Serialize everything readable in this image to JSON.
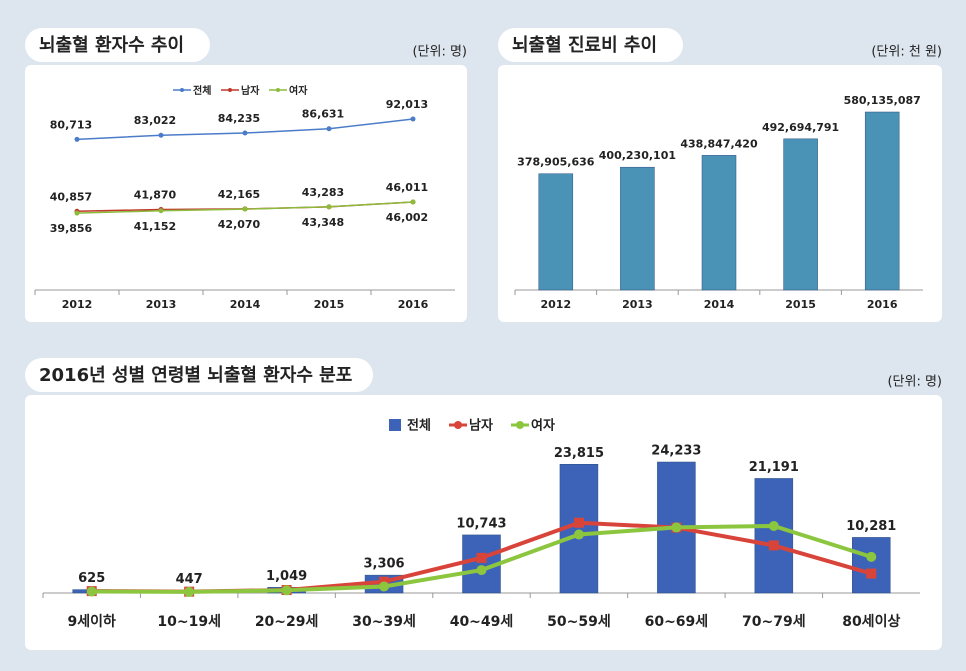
{
  "chart_data": [
    {
      "type": "line",
      "title": "뇌출혈 환자수 추이",
      "unit": "(단위: 명)",
      "categories": [
        "2012",
        "2013",
        "2014",
        "2015",
        "2016"
      ],
      "series": [
        {
          "name": "전체",
          "color": "#4a7cc9",
          "values": [
            80713,
            83022,
            84235,
            86631,
            92013
          ],
          "value_labels": [
            "80,713",
            "83,022",
            "84,235",
            "86,631",
            "92,013"
          ]
        },
        {
          "name": "남자",
          "color": "#c0392b",
          "values": [
            40857,
            41870,
            42165,
            43283,
            46011
          ],
          "value_labels": [
            "40,857",
            "41,870",
            "42,165",
            "43,283",
            "46,011"
          ]
        },
        {
          "name": "여자",
          "color": "#8dbb3c",
          "values": [
            39856,
            41152,
            42070,
            43348,
            46002
          ],
          "value_labels": [
            "39,856",
            "41,152",
            "42,070",
            "43,348",
            "46,002"
          ]
        }
      ]
    },
    {
      "type": "bar",
      "title": "뇌출혈 진료비 추이",
      "unit": "(단위: 천 원)",
      "categories": [
        "2012",
        "2013",
        "2014",
        "2015",
        "2016"
      ],
      "color": "#4b93b6",
      "values": [
        378905636,
        400230101,
        438847420,
        492694791,
        580135087
      ],
      "value_labels": [
        "378,905,636",
        "400,230,101",
        "438,847,420",
        "492,694,791",
        "580,135,087"
      ]
    },
    {
      "type": "combo",
      "title": "2016년 성별 연령별 뇌출혈 환자수 분포",
      "unit": "(단위: 명)",
      "categories": [
        "9세이하",
        "10~19세",
        "20~29세",
        "30~39세",
        "40~49세",
        "50~59세",
        "60~69세",
        "70~79세",
        "80세이상"
      ],
      "series": [
        {
          "name": "전체",
          "type": "bar",
          "color": "#3d63b8",
          "values": [
            625,
            447,
            1049,
            3306,
            10743,
            23815,
            24233,
            21191,
            10281
          ],
          "value_labels": [
            "625",
            "447",
            "1,049",
            "3,306",
            "10,743",
            "23,815",
            "24,233",
            "21,191",
            "10,281"
          ]
        },
        {
          "name": "남자",
          "type": "line",
          "color": "#d9443a",
          "values": [
            350,
            250,
            550,
            2100,
            6500,
            13000,
            12100,
            8800,
            3600
          ]
        },
        {
          "name": "여자",
          "type": "line",
          "color": "#8cc63f",
          "values": [
            275,
            197,
            499,
            1206,
            4243,
            10815,
            12133,
            12391,
            6681
          ]
        }
      ]
    }
  ]
}
